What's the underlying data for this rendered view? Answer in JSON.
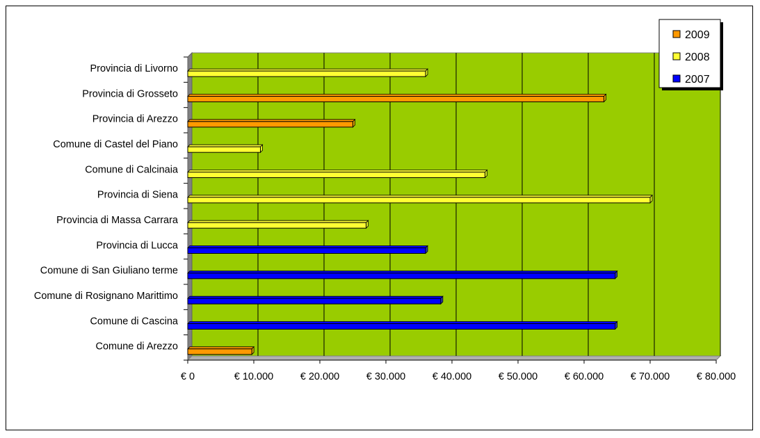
{
  "chart_data": {
    "type": "bar",
    "orientation": "horizontal",
    "categories": [
      "Provincia di Livorno",
      "Provincia di Grosseto",
      "Provincia di Arezzo",
      "Comune di Castel del Piano",
      "Comune di Calcinaia",
      "Provincia di Siena",
      "Provincia di Massa Carrara",
      "Provincia di Lucca",
      "Comune di San Giuliano terme",
      "Comune di Rosignano Marittimo",
      "Comune di Cascina",
      "Comune di Arezzo"
    ],
    "series": [
      {
        "name": "2009",
        "color": "#ff9900",
        "values": [
          null,
          63000,
          25000,
          null,
          null,
          null,
          null,
          null,
          null,
          null,
          null,
          9700
        ]
      },
      {
        "name": "2008",
        "color": "#ffff33",
        "values": [
          36000,
          null,
          null,
          11000,
          45000,
          70000,
          27000,
          null,
          null,
          null,
          null,
          null
        ]
      },
      {
        "name": "2007",
        "color": "#0000ff",
        "values": [
          null,
          null,
          null,
          null,
          null,
          null,
          null,
          36000,
          64700,
          38300,
          64700,
          null
        ]
      }
    ],
    "xlim": [
      0,
      80000
    ],
    "xticks": [
      "€ 0",
      "€ 10.000",
      "€ 20.000",
      "€ 30.000",
      "€ 40.000",
      "€ 50.000",
      "€ 60.000",
      "€ 70.000",
      "€ 80.000"
    ],
    "grid": true,
    "legend_position": "top-right",
    "plot_background": "#99cc00"
  }
}
